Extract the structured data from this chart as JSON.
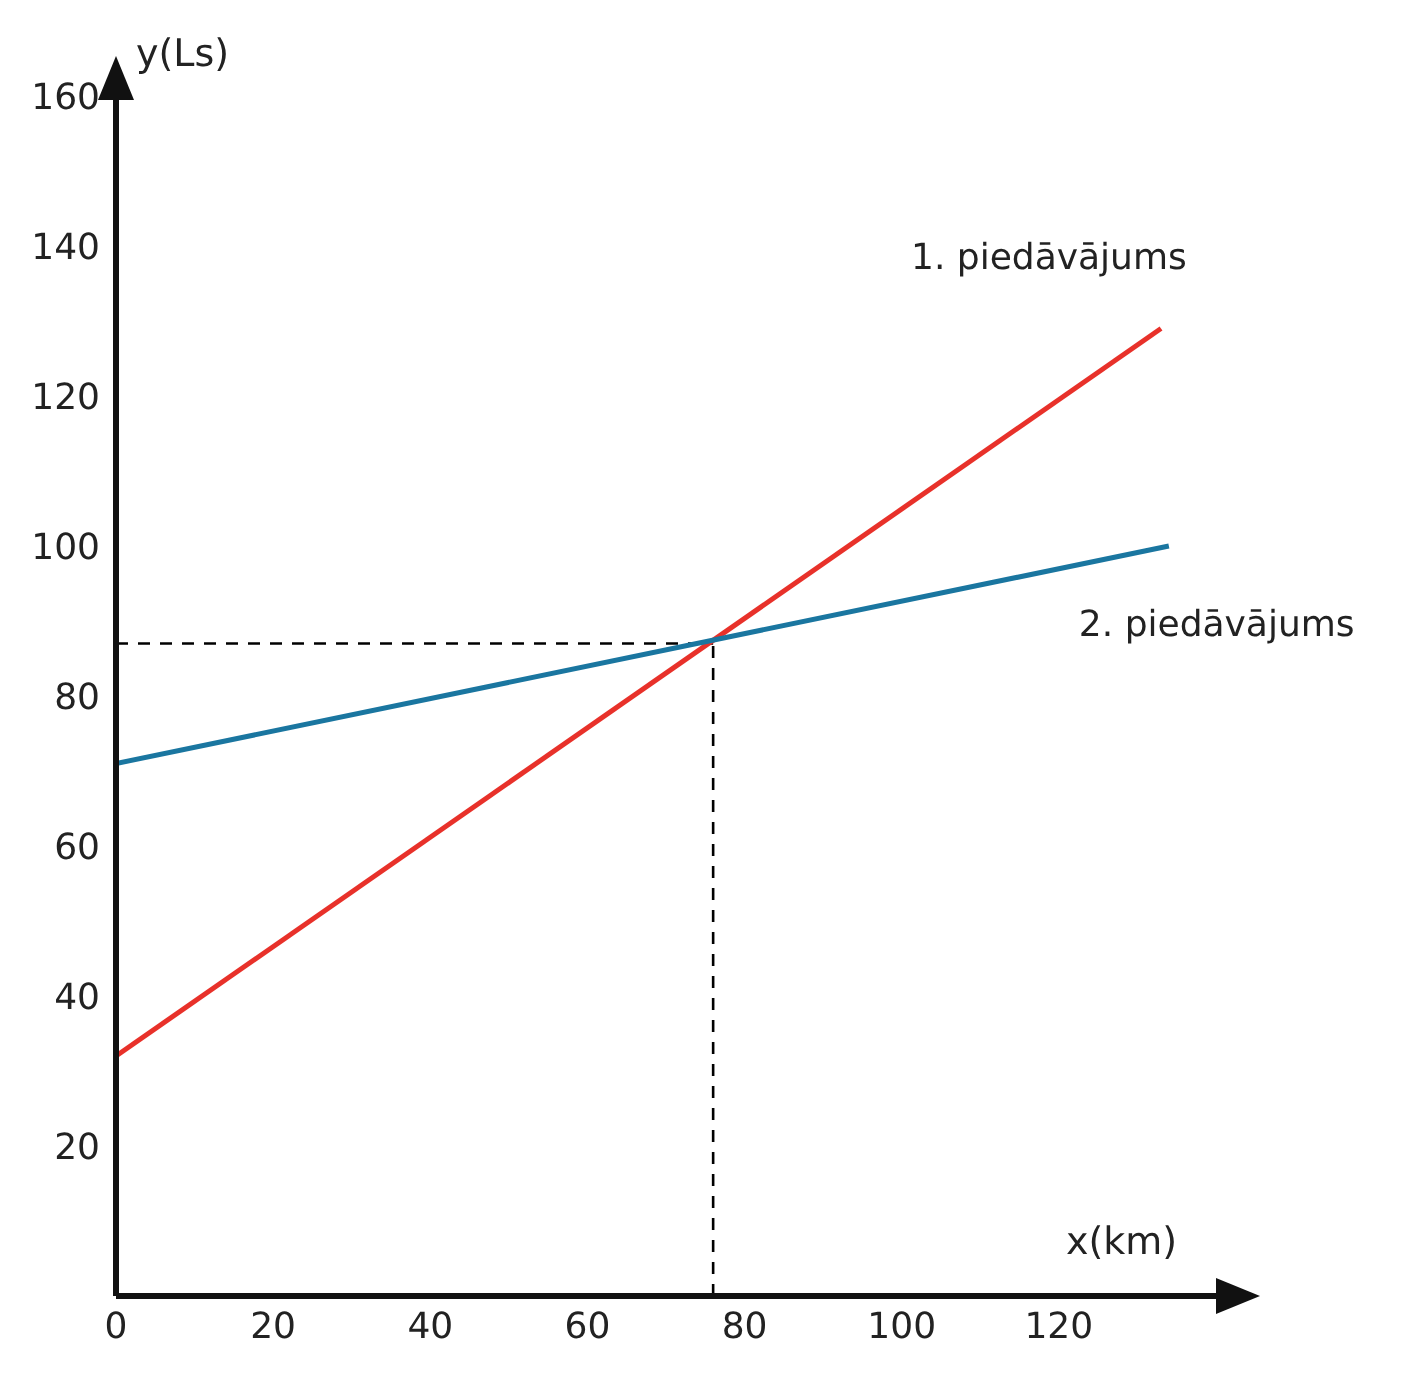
{
  "chart_data": {
    "type": "line",
    "xlabel": "x(km)",
    "ylabel": "y(Ls)",
    "series": [
      {
        "name": "1. piedāvājums",
        "color": "#e8312a",
        "x": [
          0,
          133
        ],
        "values": [
          32,
          129
        ]
      },
      {
        "name": "2. piedāvājums",
        "color": "#1a76a0",
        "x": [
          0,
          134
        ],
        "values": [
          71,
          100
        ]
      }
    ],
    "xlim": [
      0,
      140
    ],
    "xticks": [
      0,
      20,
      40,
      60,
      80,
      100,
      120
    ],
    "ylim": [
      0,
      160
    ],
    "yticks": [
      20,
      40,
      60,
      80,
      100,
      120,
      140,
      160
    ],
    "ref_lines": [
      {
        "axis": "x",
        "value": 76,
        "line_style": "dashed",
        "color": "#000000"
      },
      {
        "axis": "y",
        "value": 87,
        "line_style": "dashed",
        "color": "#000000"
      }
    ],
    "grid": false,
    "marker": "none",
    "line_style": "solid"
  }
}
